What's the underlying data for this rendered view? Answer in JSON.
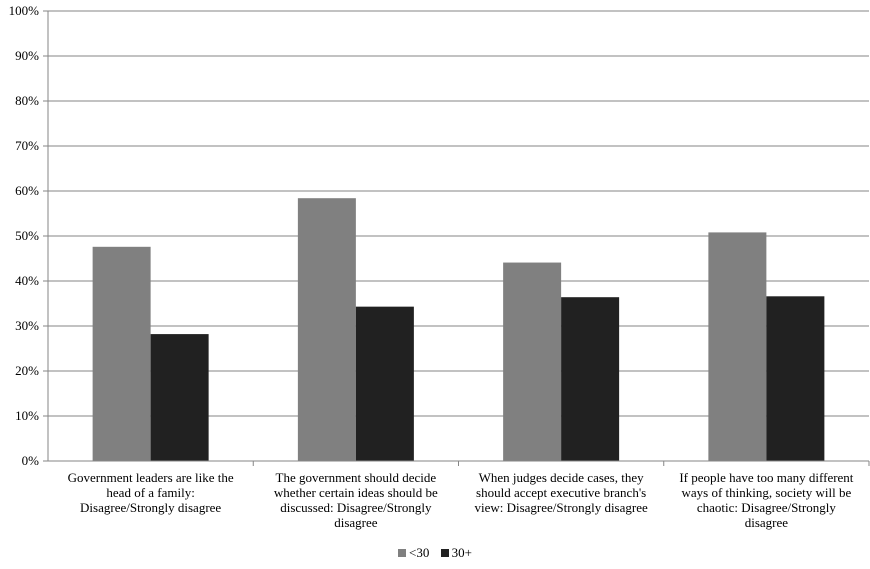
{
  "chart_data": {
    "type": "bar",
    "categories": [
      [
        "Government leaders are like the",
        "head of a family:",
        "Disagree/Strongly disagree"
      ],
      [
        "The government should decide",
        "whether certain ideas should be",
        "discussed: Disagree/Strongly",
        "disagree"
      ],
      [
        "When judges decide cases, they",
        "should accept executive branch's",
        "view: Disagree/Strongly disagree"
      ],
      [
        "If people have too many different",
        "ways of thinking, society will be",
        "chaotic: Disagree/Strongly",
        "disagree"
      ]
    ],
    "series": [
      {
        "name": "<30",
        "values": [
          47.6,
          58.4,
          44.1,
          50.8
        ],
        "color": "#808080"
      },
      {
        "name": "30+",
        "values": [
          28.2,
          34.3,
          36.4,
          36.6
        ],
        "color": "#212121"
      }
    ],
    "ylim": [
      0,
      100
    ],
    "yticks": [
      "0%",
      "10%",
      "20%",
      "30%",
      "40%",
      "50%",
      "60%",
      "70%",
      "80%",
      "90%",
      "100%"
    ],
    "grid": true,
    "legend_position": "bottom"
  }
}
